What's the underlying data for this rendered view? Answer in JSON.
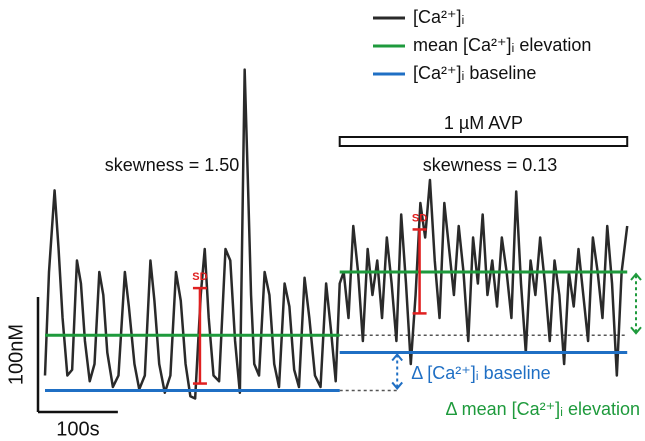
{
  "chart_data": {
    "type": "line",
    "xlim": [
      0,
      745
    ],
    "ylim": [
      0,
      300
    ],
    "series": [
      {
        "name": "[Ca²⁺]ᵢ",
        "color": "#2a2a2a",
        "x": [
          0,
          5,
          12,
          17,
          22,
          28,
          34,
          40,
          45,
          50,
          56,
          62,
          68,
          73,
          78,
          85,
          92,
          100,
          105,
          112,
          118,
          125,
          132,
          137,
          143,
          150,
          157,
          164,
          170,
          176,
          182,
          188,
          195,
          200,
          205,
          211,
          218,
          226,
          232,
          238,
          244,
          250,
          254,
          258,
          262,
          268,
          275,
          281,
          287,
          293,
          300,
          306,
          312,
          318,
          325,
          331,
          338,
          345,
          352,
          358,
          364,
          369,
          374,
          380,
          386,
          392,
          398,
          404,
          410,
          416,
          422,
          428,
          434,
          440,
          446,
          452,
          458,
          464,
          470,
          476,
          482,
          488,
          494,
          500,
          506,
          512,
          518,
          524,
          530,
          536,
          542,
          548,
          554,
          560,
          566,
          572,
          578,
          584,
          590,
          596,
          602,
          608,
          614,
          620,
          626,
          632,
          638,
          644,
          650,
          656,
          662,
          668,
          674,
          680,
          686,
          692,
          698,
          704,
          710,
          716,
          722,
          729
        ],
        "values": [
          30,
          120,
          191,
          140,
          80,
          30,
          35,
          130,
          110,
          60,
          25,
          40,
          120,
          100,
          50,
          20,
          30,
          120,
          90,
          40,
          18,
          30,
          130,
          95,
          40,
          15,
          30,
          120,
          95,
          40,
          12,
          10,
          100,
          140,
          80,
          30,
          25,
          140,
          130,
          60,
          15,
          296,
          200,
          100,
          40,
          30,
          120,
          100,
          40,
          20,
          110,
          90,
          35,
          20,
          115,
          80,
          30,
          20,
          110,
          70,
          25,
          110,
          120,
          80,
          160,
          120,
          60,
          140,
          100,
          130,
          80,
          150,
          110,
          60,
          170,
          110,
          40,
          100,
          180,
          150,
          200,
          130,
          80,
          180,
          140,
          100,
          160,
          120,
          60,
          150,
          110,
          170,
          100,
          130,
          90,
          150,
          120,
          80,
          190,
          110,
          50,
          130,
          100,
          150,
          110,
          60,
          130,
          100,
          40,
          120,
          90,
          140,
          100,
          60,
          150,
          120,
          80,
          160,
          110,
          30,
          120,
          160
        ]
      },
      {
        "name": "mean [Ca²⁺]ᵢ elevation",
        "color": "#1e9a3c",
        "x": [
          0,
          369,
          369,
          369,
          729
        ],
        "values": [
          65,
          65,
          null,
          120,
          120
        ]
      },
      {
        "name": "[Ca²⁺]ᵢ baseline",
        "color": "#1f6fc4",
        "x": [
          0,
          369,
          369,
          369,
          729
        ],
        "values": [
          17,
          17,
          null,
          50,
          50
        ]
      }
    ],
    "stimulus": {
      "label": "1 µM AVP",
      "start": 369,
      "end": 729
    },
    "skewness": [
      {
        "label": "skewness = 1.50"
      },
      {
        "label": "skewness = 0.13"
      }
    ],
    "sd_bars": [
      {
        "label": "SD",
        "x": 194,
        "low": 23,
        "high": 106,
        "color": "#e02020"
      },
      {
        "label": "SD",
        "x": 469,
        "low": 84,
        "high": 157,
        "color": "#e02020"
      }
    ],
    "deltas": [
      {
        "label": "Δ [Ca²⁺]ᵢ baseline",
        "x": 441
      },
      {
        "label": "Δ mean [Ca²⁺]ᵢ elevation",
        "x": 740
      }
    ],
    "scale_bars": {
      "x": {
        "label": "100s",
        "value": 100
      },
      "y": {
        "label": "100nM",
        "value": 100
      }
    }
  }
}
